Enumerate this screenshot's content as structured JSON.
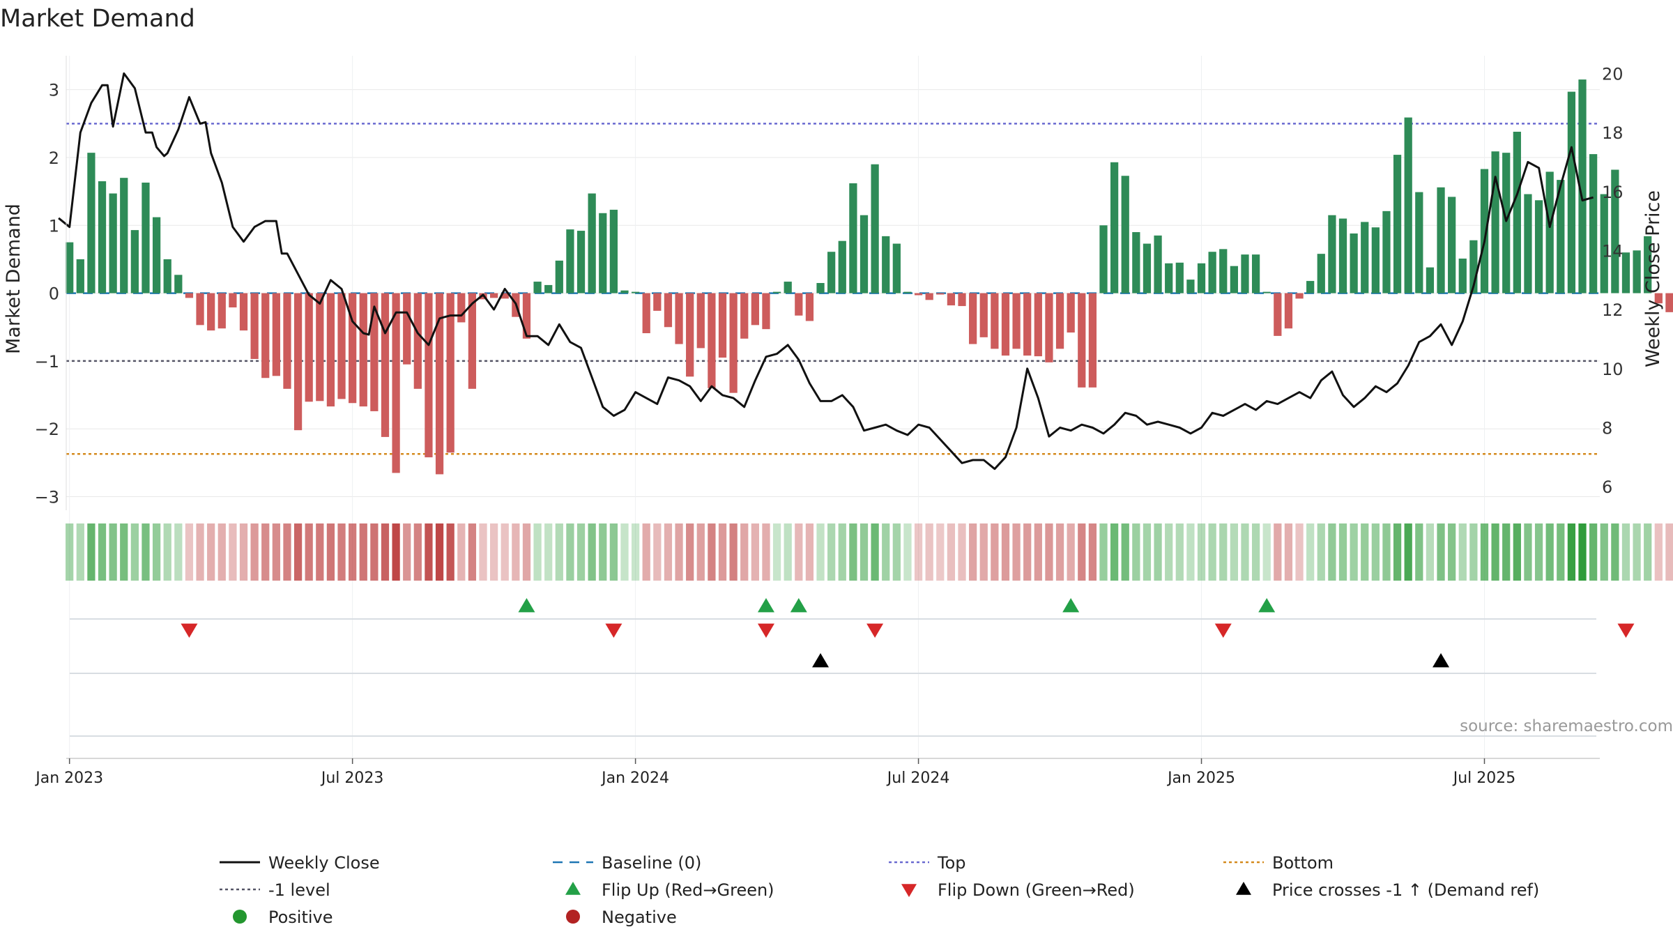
{
  "chart_data": {
    "type": "bar",
    "title": "Market Demand",
    "ylabel_left": "Market Demand",
    "ylabel_right": "Weekly Close Price",
    "ylim_left": [
      -3.2,
      3.5
    ],
    "ylim_right": [
      5.2,
      20.6
    ],
    "yticks_left": [
      3,
      2,
      1,
      0,
      -1,
      -2,
      -3
    ],
    "yticks_left_labels": [
      "3",
      "2",
      "1",
      "0",
      "−1",
      "−2",
      "−3"
    ],
    "yticks_right": [
      20,
      18,
      16,
      14,
      12,
      10,
      8,
      6
    ],
    "yticks_right_labels": [
      "20",
      "18",
      "16",
      "14",
      "12",
      "10",
      "8",
      "6"
    ],
    "x_start_week_offset": -0.3,
    "x_end_week_offset": 140.6,
    "xtick_week_offsets": [
      0,
      26,
      52,
      78,
      104,
      130
    ],
    "xtick_labels": [
      "Jan 2023",
      "Jul 2023",
      "Jan 2024",
      "Jul 2024",
      "Jan 2025",
      "Jul 2025"
    ],
    "reference_lines": {
      "top": 2.5,
      "minus_one": -1.0,
      "bottom": -2.37,
      "baseline": 0
    },
    "demand": [
      0.75,
      0.5,
      2.07,
      1.65,
      1.47,
      1.7,
      0.93,
      1.63,
      1.12,
      0.5,
      0.27,
      -0.07,
      -0.47,
      -0.55,
      -0.52,
      -0.21,
      -0.55,
      -0.97,
      -1.25,
      -1.22,
      -1.41,
      -2.02,
      -1.6,
      -1.59,
      -1.67,
      -1.56,
      -1.62,
      -1.67,
      -1.74,
      -2.12,
      -2.65,
      -1.05,
      -1.41,
      -2.42,
      -2.67,
      -2.35,
      -0.43,
      -1.41,
      -0.09,
      -0.07,
      -0.08,
      -0.35,
      -0.67,
      0.17,
      0.12,
      0.48,
      0.94,
      0.92,
      1.47,
      1.18,
      1.23,
      0.04,
      0.02,
      -0.59,
      -0.26,
      -0.5,
      -0.75,
      -1.23,
      -0.81,
      -1.4,
      -0.95,
      -1.47,
      -0.67,
      -0.47,
      -0.53,
      0.02,
      0.17,
      -0.33,
      -0.41,
      0.15,
      0.61,
      0.77,
      1.62,
      1.15,
      1.9,
      0.84,
      0.73,
      0.02,
      -0.03,
      -0.1,
      -0.02,
      -0.18,
      -0.19,
      -0.75,
      -0.65,
      -0.82,
      -0.92,
      -0.82,
      -0.92,
      -0.93,
      -1.02,
      -0.82,
      -0.58,
      -1.39,
      -1.39,
      1.0,
      1.93,
      1.73,
      0.9,
      0.73,
      0.85,
      0.44,
      0.45,
      0.2,
      0.44,
      0.61,
      0.65,
      0.4,
      0.57,
      0.57,
      0.02,
      -0.63,
      -0.52,
      -0.08,
      0.18,
      0.58,
      1.15,
      1.1,
      0.88,
      1.05,
      0.97,
      1.21,
      2.04,
      2.59,
      1.49,
      0.38,
      1.56,
      1.42,
      0.51,
      0.78,
      1.83,
      2.09,
      2.07,
      2.38,
      1.46,
      1.37,
      1.79,
      1.67,
      2.97,
      3.15,
      2.05,
      1.46,
      1.82,
      0.6,
      0.63,
      0.84,
      -0.15,
      -0.28
    ],
    "weekly_close_x": [
      -1.0,
      0.0,
      1.0,
      2.0,
      3.0,
      3.5,
      4.0,
      5.0,
      6.0,
      7.0,
      7.6,
      8.0,
      8.7,
      9.0,
      10.0,
      11.0,
      12.0,
      12.5,
      13.0,
      14.0,
      15.0,
      16.0,
      17.0,
      18.0,
      19.0,
      19.5,
      20.0,
      21.0,
      22.0,
      23.0,
      24.0,
      25.0,
      26.0,
      27.0,
      27.5,
      28.0,
      29.0,
      30.0,
      31.0,
      32.0,
      33.0,
      34.0,
      35.0,
      36.0,
      37.0,
      38.0,
      39.0,
      40.0,
      41.0,
      42.0,
      43.0,
      44.0,
      45.0,
      46.0,
      47.0,
      48.0,
      49.0,
      50.0,
      51.0,
      52.0,
      53.0,
      54.0,
      55.0,
      56.0,
      57.0,
      58.0,
      59.0,
      60.0,
      61.0,
      62.0,
      63.0,
      64.0,
      65.0,
      66.0,
      67.0,
      68.0,
      69.0,
      70.0,
      71.0,
      72.0,
      73.0,
      74.0,
      75.0,
      76.0,
      77.0,
      78.0,
      79.0,
      80.0,
      81.0,
      82.0,
      83.0,
      84.0,
      85.0,
      86.0,
      87.0,
      88.0,
      89.0,
      90.0,
      91.0,
      92.0,
      93.0,
      94.0,
      95.0,
      96.0,
      97.0,
      98.0,
      99.0,
      100.0,
      101.0,
      102.0,
      103.0,
      104.0,
      105.0,
      106.0,
      107.0,
      108.0,
      109.0,
      110.0,
      111.0,
      112.0,
      113.0,
      114.0,
      115.0,
      116.0,
      117.0,
      118.0,
      119.0,
      120.0,
      121.0,
      122.0,
      123.0,
      124.0,
      125.0,
      126.0,
      127.0,
      128.0,
      129.0,
      130.0,
      131.0,
      132.0,
      133.0,
      134.0,
      135.0,
      136.0,
      137.0,
      138.0,
      139.0,
      140.0
    ],
    "weekly_close": [
      15.1,
      14.8,
      18.0,
      19.0,
      19.6,
      19.6,
      18.2,
      20.0,
      19.5,
      18.0,
      18.0,
      17.5,
      17.2,
      17.3,
      18.1,
      19.2,
      18.3,
      18.35,
      17.3,
      16.3,
      14.8,
      14.3,
      14.8,
      15.0,
      15.0,
      13.9,
      13.9,
      13.2,
      12.5,
      12.2,
      13.0,
      12.7,
      11.6,
      11.2,
      11.15,
      12.1,
      11.2,
      11.9,
      11.9,
      11.2,
      10.8,
      11.7,
      11.8,
      11.8,
      12.2,
      12.5,
      12.0,
      12.7,
      12.2,
      11.1,
      11.1,
      10.8,
      11.5,
      10.9,
      10.7,
      9.7,
      8.7,
      8.4,
      8.6,
      9.2,
      9.0,
      8.8,
      9.7,
      9.6,
      9.4,
      8.9,
      9.4,
      9.1,
      9.0,
      8.7,
      9.6,
      10.4,
      10.5,
      10.8,
      10.3,
      9.5,
      8.9,
      8.9,
      9.1,
      8.7,
      7.9,
      8.0,
      8.1,
      7.9,
      7.75,
      8.1,
      8.0,
      7.6,
      7.2,
      6.8,
      6.9,
      6.9,
      6.6,
      7.0,
      8.0,
      10.0,
      9.0,
      7.7,
      8.0,
      7.9,
      8.1,
      8.0,
      7.8,
      8.1,
      8.5,
      8.4,
      8.1,
      8.2,
      8.1,
      8.0,
      7.8,
      8.0,
      8.5,
      8.4,
      8.6,
      8.8,
      8.6,
      8.9,
      8.8,
      9.0,
      9.2,
      9.0,
      9.6,
      9.9,
      9.1,
      8.7,
      9.0,
      9.4,
      9.2,
      9.5,
      10.1,
      10.9,
      11.1,
      11.5,
      10.8,
      11.6,
      12.8,
      14.3,
      16.5,
      15.0,
      15.9,
      17.0,
      16.8,
      14.8,
      16.2,
      17.5,
      15.7,
      15.8
    ],
    "flip_up_weeks": [
      42,
      64,
      67,
      92,
      110
    ],
    "flip_down_weeks": [
      11,
      50,
      64,
      74,
      106,
      143
    ],
    "price_cross_up_weeks": [
      69,
      126
    ],
    "source_text": "source: sharemaestro.com",
    "legend": [
      {
        "label": "Weekly Close",
        "kind": "line",
        "color": "#111111"
      },
      {
        "label": "Baseline (0)",
        "kind": "dash",
        "color": "#1f77b4"
      },
      {
        "label": "Top",
        "kind": "dot",
        "color": "#6a6ad0"
      },
      {
        "label": "Bottom",
        "kind": "dot",
        "color": "#d48a1e"
      },
      {
        "label": "-1 level",
        "kind": "dot",
        "color": "#555566"
      },
      {
        "label": "Flip Up (Red→Green)",
        "kind": "up",
        "color": "#23a047"
      },
      {
        "label": "Flip Down (Green→Red)",
        "kind": "down",
        "color": "#d62728"
      },
      {
        "label": "Price crosses -1 ↑ (Demand ref)",
        "kind": "up",
        "color": "#000000"
      },
      {
        "label": "Positive",
        "kind": "circle",
        "color": "#23962f"
      },
      {
        "label": "Negative",
        "kind": "circle",
        "color": "#b22222"
      }
    ],
    "colors": {
      "positive_bar": "#2e8b57",
      "negative_bar": "#cd5c5c",
      "grid": "#e8e8e8",
      "axis_text": "#333333"
    }
  }
}
